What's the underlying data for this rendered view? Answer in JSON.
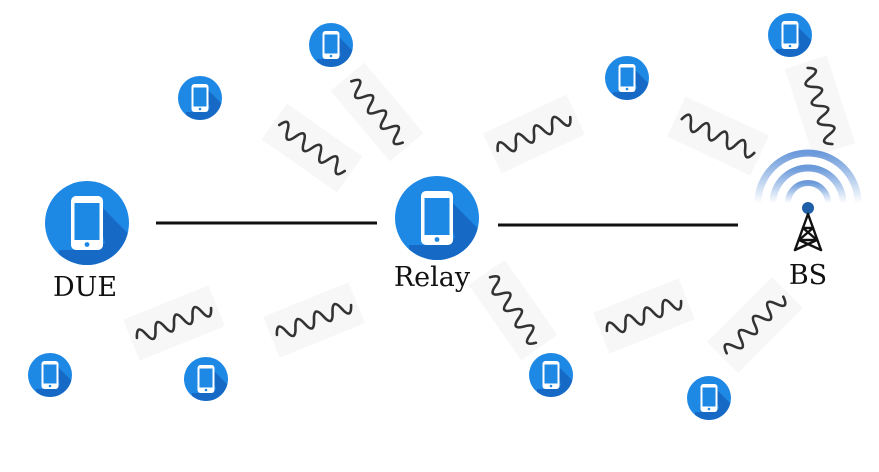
{
  "nodes": {
    "due_label": "DUE",
    "relay_label": "Relay",
    "bs_label": "BS"
  },
  "icons": {
    "device": "smartphone-icon",
    "base_station": "cell-tower-icon",
    "interference": "wavy-signal-icon"
  },
  "colors": {
    "device_blue": "#1e88e5",
    "device_shadow": "#1565c0",
    "link_line": "#111111",
    "wave": "#333333",
    "tower_blue": "#1f5fa8"
  }
}
